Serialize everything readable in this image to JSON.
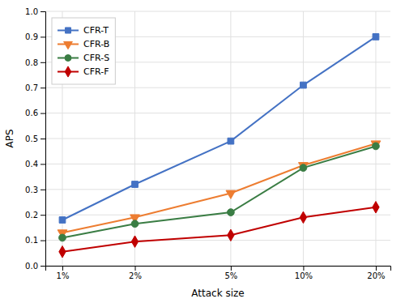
{
  "chart_data": {
    "type": "line",
    "x": [
      1,
      2,
      5,
      10,
      20
    ],
    "series": [
      {
        "name": "CFR-T",
        "color": "#4472c4",
        "marker": "square",
        "values": [
          0.18,
          0.32,
          0.49,
          0.71,
          0.9
        ]
      },
      {
        "name": "CFR-B",
        "color": "#ed7d31",
        "marker": "triangle-down",
        "values": [
          0.13,
          0.19,
          0.285,
          0.395,
          0.48
        ]
      },
      {
        "name": "CFR-S",
        "color": "#3a7d44",
        "marker": "circle",
        "values": [
          0.11,
          0.165,
          0.21,
          0.385,
          0.47
        ]
      },
      {
        "name": "CFR-F",
        "color": "#c00000",
        "marker": "diamond",
        "values": [
          0.055,
          0.095,
          0.12,
          0.19,
          0.23
        ]
      }
    ],
    "xlabel": "Attack size",
    "ylabel": "APS",
    "log": "x",
    "xlim": [
      0.85,
      23
    ],
    "xticks": [
      {
        "value": 1,
        "label": "1%"
      },
      {
        "value": 2,
        "label": "2%"
      },
      {
        "value": 5,
        "label": "5%"
      },
      {
        "value": 10,
        "label": "10%"
      },
      {
        "value": 20,
        "label": "20%"
      }
    ],
    "ylim": [
      0.0,
      1.0
    ],
    "yticks": [
      {
        "value": 0.0,
        "label": "0.0"
      },
      0.1,
      0.2,
      0.3,
      0.4,
      0.5,
      0.6,
      0.7,
      0.8,
      0.9,
      {
        "value": 1.0,
        "label": "1.0"
      }
    ],
    "grid": true,
    "legend": "upper left"
  }
}
